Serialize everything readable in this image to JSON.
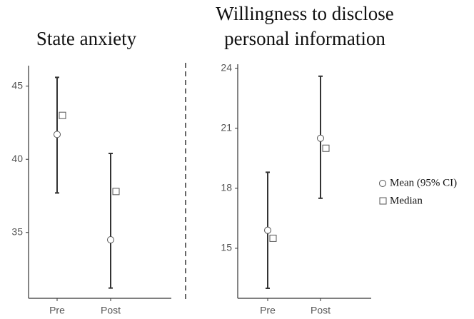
{
  "chart_data": [
    {
      "type": "errorbar",
      "title": [
        "State anxiety"
      ],
      "categories": [
        "Pre",
        "Post"
      ],
      "series": [
        {
          "name": "Mean (95% CI)",
          "values": [
            41.7,
            34.5
          ],
          "ci_lower": [
            37.7,
            31.2
          ],
          "ci_upper": [
            45.6,
            40.4
          ]
        },
        {
          "name": "Median",
          "values": [
            43.0,
            37.8
          ]
        }
      ],
      "ylim": [
        30.5,
        46.4
      ],
      "yticks": [
        35,
        40,
        45
      ]
    },
    {
      "type": "errorbar",
      "title": [
        "Willingness to disclose",
        "personal information"
      ],
      "categories": [
        "Pre",
        "Post"
      ],
      "series": [
        {
          "name": "Mean (95% CI)",
          "values": [
            15.9,
            20.5
          ],
          "ci_lower": [
            13.0,
            17.5
          ],
          "ci_upper": [
            18.8,
            23.6
          ]
        },
        {
          "name": "Median",
          "values": [
            15.5,
            20.0
          ]
        }
      ],
      "ylim": [
        12.5,
        24.2
      ],
      "yticks": [
        15,
        18,
        21,
        24
      ]
    }
  ]
}
